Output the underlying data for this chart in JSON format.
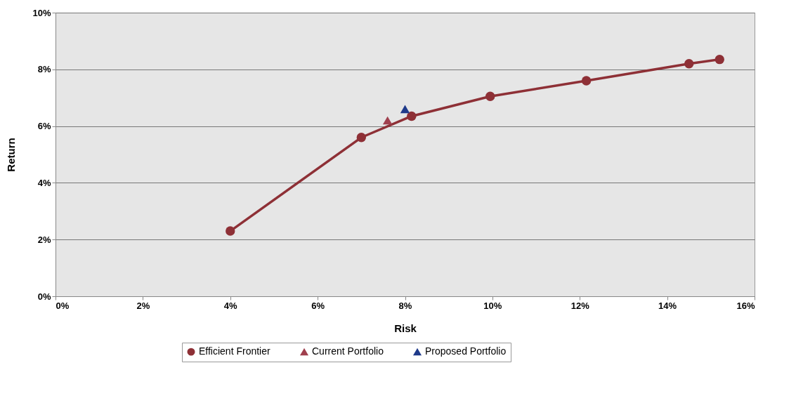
{
  "chart_data": {
    "type": "line",
    "xlabel": "Risk",
    "ylabel": "Return",
    "xlim": [
      0,
      16
    ],
    "xticks": [
      {
        "value": 0,
        "label": "0%"
      },
      {
        "value": 2,
        "label": "2%"
      },
      {
        "value": 4,
        "label": "4%"
      },
      {
        "value": 6,
        "label": "6%"
      },
      {
        "value": 8,
        "label": "8%"
      },
      {
        "value": 10,
        "label": "10%"
      },
      {
        "value": 12,
        "label": "12%"
      },
      {
        "value": 14,
        "label": "14%"
      },
      {
        "value": 16,
        "label": "16%"
      }
    ],
    "ylim": [
      0,
      10
    ],
    "yticks": [
      {
        "value": 0,
        "label": "0%"
      },
      {
        "value": 2,
        "label": "2%"
      },
      {
        "value": 4,
        "label": "4%"
      },
      {
        "value": 6,
        "label": "6%"
      },
      {
        "value": 8,
        "label": "8%"
      },
      {
        "value": 10,
        "label": "10%"
      }
    ],
    "grid": "y",
    "legend": "bottom",
    "series": [
      {
        "name": "Efficient Frontier",
        "marker": "circle",
        "color": "#8e3036",
        "x": [
          4.0,
          7.0,
          8.15,
          9.95,
          12.15,
          14.5,
          15.2
        ],
        "values": [
          2.3,
          5.6,
          6.35,
          7.05,
          7.6,
          8.2,
          8.35
        ]
      },
      {
        "name": "Current Portfolio",
        "type": "scatter",
        "marker": "triangle",
        "color": "#a0404e",
        "x": [
          7.6
        ],
        "values": [
          6.2
        ]
      },
      {
        "name": "Proposed Portfolio",
        "type": "scatter",
        "marker": "triangle",
        "color": "#1f3a8a",
        "x": [
          8.0
        ],
        "values": [
          6.6
        ]
      }
    ]
  }
}
